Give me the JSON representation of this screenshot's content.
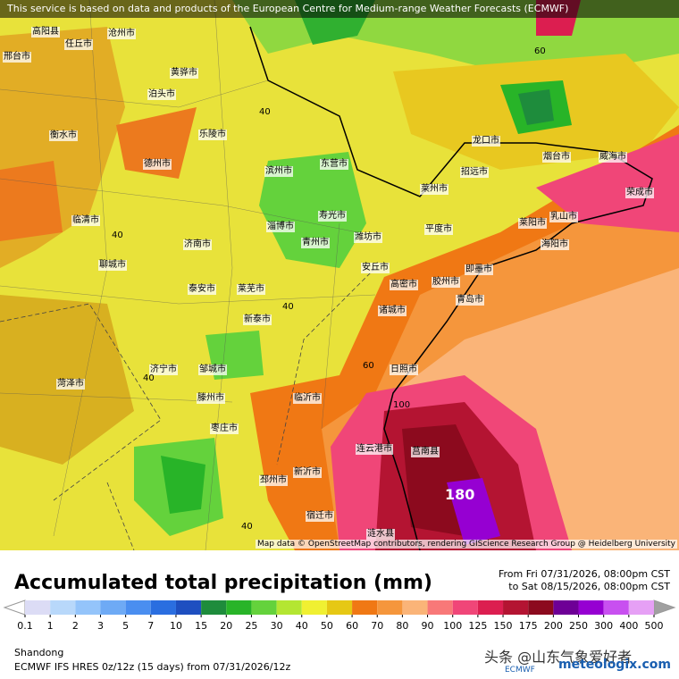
{
  "header": {
    "notice": "This service is based on data and products of the European Centre for Medium-range Weather Forecasts (ECMWF)"
  },
  "map": {
    "attribution": "Map data © OpenStreetMap contributors, rendering GIScience Research Group @ Heidelberg University",
    "cities": [
      "高阳县",
      "任丘市",
      "沧州市",
      "黄骅市",
      "泊头市",
      "衡水市",
      "德州市",
      "乐陵市",
      "滨州市",
      "东营市",
      "潍坊市",
      "淄博市",
      "济南市",
      "泰安市",
      "莱芜市",
      "新泰市",
      "临沂市",
      "日照市",
      "青岛市",
      "胶州市",
      "即墨市",
      "莱阳市",
      "海阳市",
      "烟台市",
      "威海市",
      "荣成市",
      "乳山市",
      "龙口市",
      "招远市",
      "莱州市",
      "平度市",
      "高密市",
      "诸城市",
      "安丘市",
      "青州市",
      "邹城市",
      "济宁市",
      "菏泽市",
      "枣庄市",
      "新沂市",
      "连云港市",
      "邳州市",
      "宿迁市",
      "涟水县",
      "聊城市",
      "邢台市",
      "临清市",
      "寿光市",
      "滕州市",
      "莒南县"
    ],
    "contour_labels": [
      "40",
      "40",
      "40",
      "40",
      "40",
      "60",
      "60",
      "100",
      "180"
    ]
  },
  "footer": {
    "title": "Accumulated total precipitation (mm)",
    "from": "From Fri 07/31/2026, 08:00pm CST",
    "to": "to Sat 08/15/2026, 08:00pm CST",
    "region": "Shandong",
    "model": "ECMWF IFS HRES 0z/12z (15 days) from 07/31/2026/12z",
    "watermark": "头条 @山东气象爱好者",
    "logo": "meteologix.com",
    "logo_sub": "ECMWF"
  },
  "legend": {
    "ticks": [
      0.1,
      1,
      2,
      3,
      5,
      7,
      10,
      15,
      20,
      25,
      30,
      40,
      50,
      60,
      70,
      80,
      90,
      100,
      125,
      150,
      175,
      200,
      250,
      300,
      400,
      500
    ],
    "colors": [
      "#dcdcf5",
      "#b8d8fa",
      "#94c4fa",
      "#6eaaf5",
      "#4a8ef0",
      "#2a6ee0",
      "#1e4fc0",
      "#1e8c3c",
      "#28b428",
      "#64d23c",
      "#b4e632",
      "#f0f032",
      "#e6c814",
      "#f07814",
      "#f5963c",
      "#fab478",
      "#f87878",
      "#f04678",
      "#dc1e50",
      "#b41432",
      "#8c0a1e",
      "#6e0096",
      "#9600d2",
      "#c850f0",
      "#e6a0f5"
    ],
    "under_color": "#ffffff",
    "over_color": "#a0a0a0"
  }
}
